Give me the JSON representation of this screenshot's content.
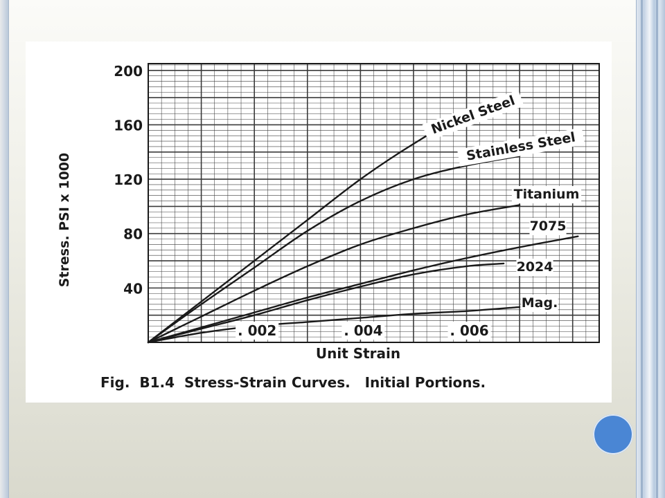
{
  "chart_data": {
    "type": "line",
    "title": "Fig.  B1.4  Stress-Strain Curves.   Initial Portions.",
    "xlabel": "Unit Strain",
    "ylabel": "Stress.   PSI x 1000",
    "xlim": [
      0,
      0.0085
    ],
    "ylim": [
      0,
      205
    ],
    "grid": true,
    "y_ticks": [
      "200",
      "160",
      "120",
      "80",
      "40"
    ],
    "x_ticks": [
      {
        "value": 0.002,
        "label": ". 002"
      },
      {
        "value": 0.004,
        "label": ". 004"
      },
      {
        "value": 0.006,
        "label": ". 006"
      }
    ],
    "series": [
      {
        "name": "Nickel Steel",
        "x": [
          0,
          0.001,
          0.002,
          0.003,
          0.004,
          0.005,
          0.006,
          0.007
        ],
        "y": [
          0,
          30,
          60,
          90,
          120,
          146,
          168,
          180
        ]
      },
      {
        "name": "Stainless Steel",
        "x": [
          0,
          0.001,
          0.002,
          0.003,
          0.004,
          0.005,
          0.006,
          0.007
        ],
        "y": [
          0,
          28,
          55,
          82,
          104,
          120,
          130,
          137
        ]
      },
      {
        "name": "Titanium",
        "x": [
          0,
          0.001,
          0.002,
          0.003,
          0.004,
          0.005,
          0.006,
          0.007
        ],
        "y": [
          0,
          19,
          38,
          56,
          72,
          84,
          94,
          101
        ]
      },
      {
        "name": "7075",
        "x": [
          0,
          0.001,
          0.002,
          0.003,
          0.004,
          0.005,
          0.006,
          0.007,
          0.0081
        ],
        "y": [
          0,
          11,
          22,
          33,
          43,
          53,
          62,
          70,
          78
        ]
      },
      {
        "name": "2024",
        "x": [
          0,
          0.001,
          0.002,
          0.003,
          0.004,
          0.005,
          0.006,
          0.0067
        ],
        "y": [
          0,
          10,
          20,
          31,
          41,
          50,
          56,
          58
        ]
      },
      {
        "name": "Mag.",
        "x": [
          0,
          0.001,
          0.002,
          0.003,
          0.004,
          0.005,
          0.006,
          0.007
        ],
        "y": [
          0,
          7,
          12,
          15,
          18,
          21,
          23,
          26
        ]
      }
    ]
  },
  "theme": {
    "line_color": "#1a1a1a",
    "grid_color": "#3a3a3a",
    "nav_dot_color": "#4a86d4"
  }
}
